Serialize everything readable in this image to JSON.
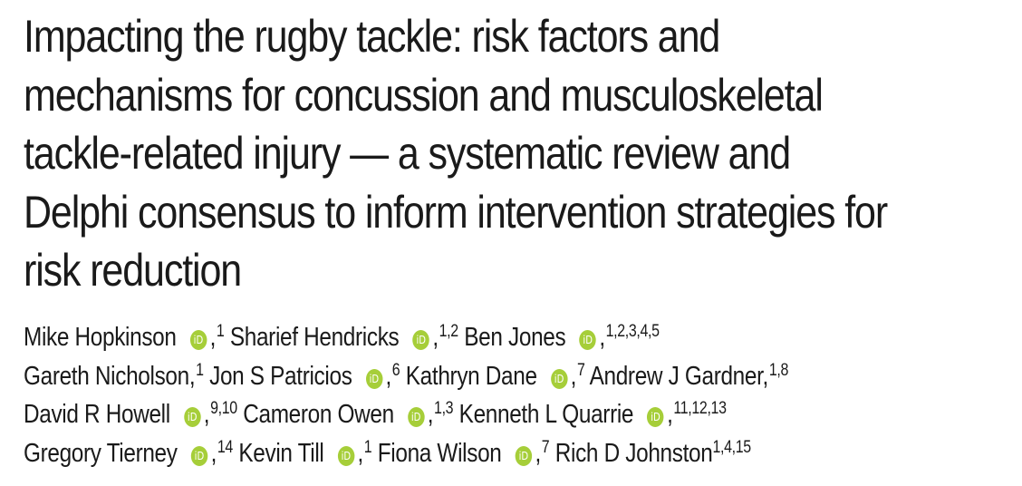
{
  "title": {
    "lines": [
      "Impacting the rugby tackle: risk factors and",
      "mechanisms for concussion and musculoskeletal",
      "tackle-related injury — a systematic review and",
      "Delphi consensus to inform intervention strategies for",
      "risk reduction"
    ]
  },
  "orcid_icon": {
    "label": "iD",
    "color": "#a6ce39",
    "icon": "orcid-icon"
  },
  "authors": [
    {
      "name": "Mike Hopkinson",
      "orcid": true,
      "affil": "1"
    },
    {
      "name": "Sharief Hendricks",
      "orcid": true,
      "affil": "1,2"
    },
    {
      "name": "Ben Jones",
      "orcid": true,
      "affil": "1,2,3,4,5"
    },
    {
      "name": "Gareth Nicholson",
      "orcid": false,
      "affil": "1"
    },
    {
      "name": "Jon S Patricios",
      "orcid": true,
      "affil": "6"
    },
    {
      "name": "Kathryn Dane",
      "orcid": true,
      "affil": "7"
    },
    {
      "name": "Andrew J Gardner",
      "orcid": false,
      "affil": "1,8"
    },
    {
      "name": "David R Howell",
      "orcid": true,
      "affil": "9,10"
    },
    {
      "name": "Cameron Owen",
      "orcid": true,
      "affil": "1,3"
    },
    {
      "name": "Kenneth L Quarrie",
      "orcid": true,
      "affil": "11,12,13"
    },
    {
      "name": "Gregory Tierney",
      "orcid": true,
      "affil": "14"
    },
    {
      "name": "Kevin Till",
      "orcid": true,
      "affil": "1"
    },
    {
      "name": "Fiona Wilson",
      "orcid": true,
      "affil": "7"
    },
    {
      "name": "Rich D Johnston",
      "orcid": false,
      "affil": "1,4,15"
    }
  ]
}
